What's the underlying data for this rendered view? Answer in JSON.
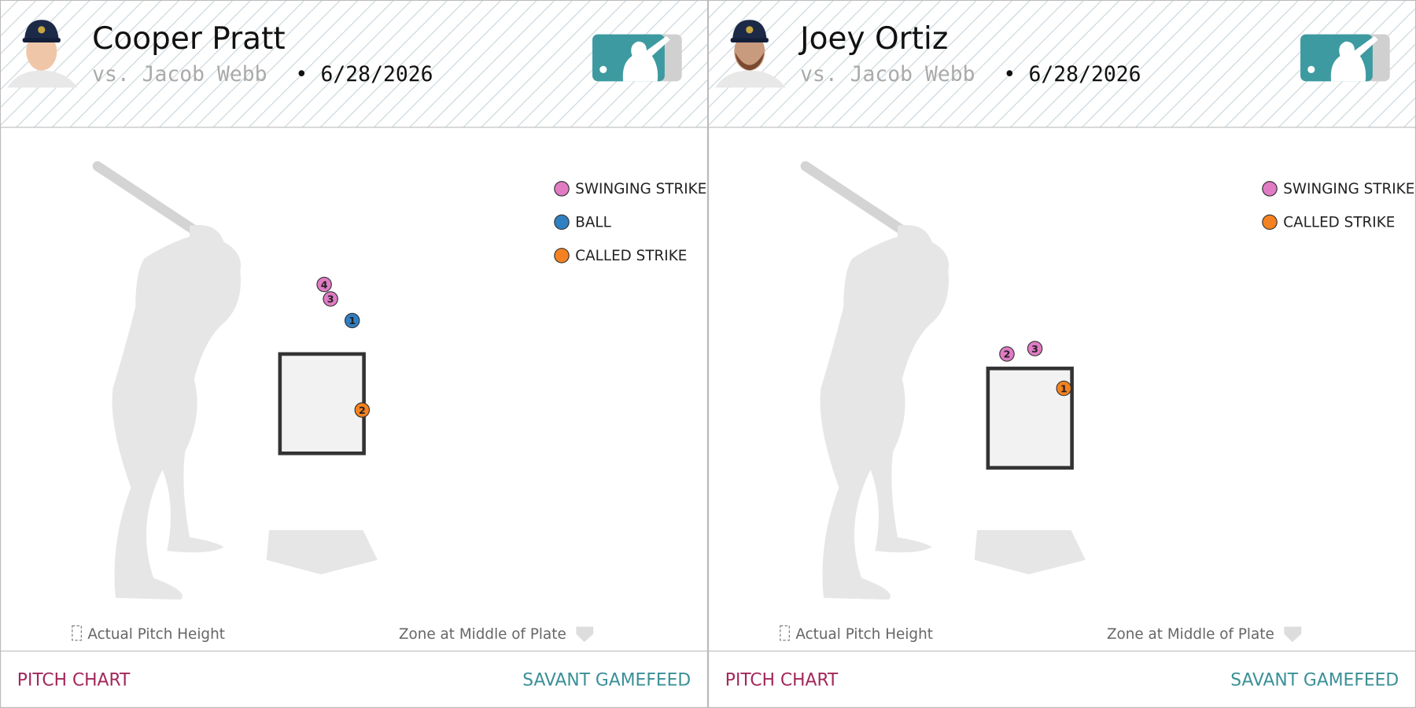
{
  "panels": [
    {
      "player": "Cooper Pratt",
      "opponent": "vs. Jacob Webb",
      "separator": "•",
      "date": "6/28/2026",
      "legend": [
        {
          "label": "SWINGING STRIKE",
          "color": "#e07bc4"
        },
        {
          "label": "BALL",
          "color": "#2f7fc1"
        },
        {
          "label": "CALLED STRIKE",
          "color": "#f58220"
        }
      ],
      "pitches": [
        {
          "number": 4,
          "color": "#e07bc4"
        },
        {
          "number": 3,
          "color": "#e07bc4"
        },
        {
          "number": 1,
          "color": "#2f7fc1"
        },
        {
          "number": 2,
          "color": "#f58220"
        }
      ],
      "footer_left": "Actual Pitch Height",
      "footer_right": "Zone at Middle of Plate",
      "link_left": "PITCH CHART",
      "link_right": "SAVANT GAMEFEED"
    },
    {
      "player": "Joey Ortiz",
      "opponent": "vs. Jacob Webb",
      "separator": "•",
      "date": "6/28/2026",
      "legend": [
        {
          "label": "SWINGING STRIKE",
          "color": "#e07bc4"
        },
        {
          "label": "CALLED STRIKE",
          "color": "#f58220"
        }
      ],
      "pitches": [
        {
          "number": 2,
          "color": "#e07bc4"
        },
        {
          "number": 3,
          "color": "#e07bc4"
        },
        {
          "number": 1,
          "color": "#f58220"
        }
      ],
      "footer_left": "Actual Pitch Height",
      "footer_right": "Zone at Middle of Plate",
      "link_left": "PITCH CHART",
      "link_right": "SAVANT GAMEFEED"
    }
  ]
}
